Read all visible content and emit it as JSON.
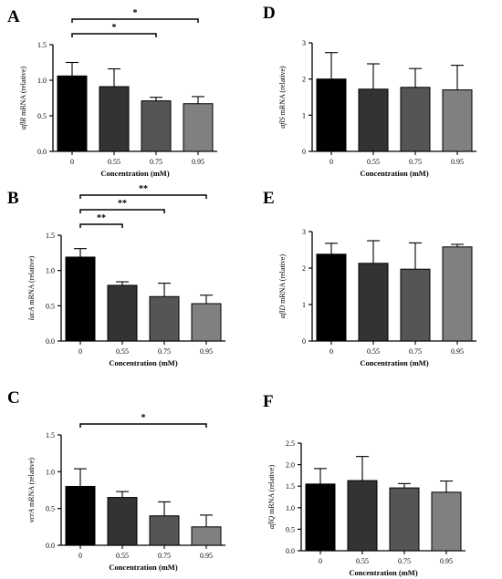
{
  "chart_data": [
    {
      "panel": "A",
      "type": "bar",
      "categories": [
        "0",
        "0.55",
        "0.75",
        "0.95"
      ],
      "values": [
        1.06,
        0.91,
        0.71,
        0.67
      ],
      "errors": [
        0.19,
        0.25,
        0.05,
        0.1
      ],
      "ylim": [
        0,
        1.5
      ],
      "yticks": [
        "0.0",
        "0.5",
        "1.0",
        "1.5"
      ],
      "xlabel": "Concentration (mM)",
      "ylabel": {
        "italic": "aflR",
        "rest": " mRNA (relative)"
      },
      "significance": [
        {
          "from": 0,
          "to": 3,
          "label": "*"
        },
        {
          "from": 0,
          "to": 2,
          "label": "*"
        }
      ],
      "bar_colors": [
        "#000000",
        "#333333",
        "#555555",
        "#808080"
      ]
    },
    {
      "panel": "B",
      "type": "bar",
      "categories": [
        "0",
        "0.55",
        "0.75",
        "0.95"
      ],
      "values": [
        1.19,
        0.79,
        0.63,
        0.53
      ],
      "errors": [
        0.12,
        0.05,
        0.19,
        0.12
      ],
      "ylim": [
        0,
        1.5
      ],
      "yticks": [
        "0.0",
        "0.5",
        "1.0",
        "1.5"
      ],
      "xlabel": "Concentration (mM)",
      "ylabel": {
        "italic": "lacA",
        "rest": " mRNA (relative)"
      },
      "significance": [
        {
          "from": 0,
          "to": 3,
          "label": "**"
        },
        {
          "from": 0,
          "to": 2,
          "label": "**"
        },
        {
          "from": 0,
          "to": 1,
          "label": "**"
        }
      ],
      "bar_colors": [
        "#000000",
        "#333333",
        "#555555",
        "#808080"
      ]
    },
    {
      "panel": "C",
      "type": "bar",
      "categories": [
        "0",
        "0.55",
        "0.75",
        "0.95"
      ],
      "values": [
        0.8,
        0.65,
        0.4,
        0.25
      ],
      "errors": [
        0.24,
        0.08,
        0.19,
        0.16
      ],
      "ylim": [
        0,
        1.5
      ],
      "yticks": [
        "0.0",
        "0.5",
        "1.0",
        "1.5"
      ],
      "xlabel": "Concentration (mM)",
      "ylabel": {
        "italic": "vcrA",
        "rest": " mRNA (relative)"
      },
      "significance": [
        {
          "from": 0,
          "to": 3,
          "label": "*"
        }
      ],
      "bar_colors": [
        "#000000",
        "#333333",
        "#555555",
        "#808080"
      ]
    },
    {
      "panel": "D",
      "type": "bar",
      "categories": [
        "0",
        "0.55",
        "0.75",
        "0.95"
      ],
      "values": [
        2.0,
        1.72,
        1.77,
        1.7
      ],
      "errors": [
        0.73,
        0.7,
        0.52,
        0.68
      ],
      "ylim": [
        0,
        3
      ],
      "yticks": [
        "0",
        "1",
        "2",
        "3"
      ],
      "xlabel": "Concentration (mM)",
      "ylabel": {
        "italic": "aflS",
        "rest": " mRNA (relative)"
      },
      "significance": [],
      "bar_colors": [
        "#000000",
        "#333333",
        "#555555",
        "#808080"
      ]
    },
    {
      "panel": "E",
      "type": "bar",
      "categories": [
        "0",
        "0.55",
        "0.75",
        "0.95"
      ],
      "values": [
        2.38,
        2.13,
        1.97,
        2.58
      ],
      "errors": [
        0.3,
        0.62,
        0.72,
        0.07
      ],
      "ylim": [
        0,
        3
      ],
      "yticks": [
        "0",
        "1",
        "2",
        "3"
      ],
      "xlabel": "Concentration (mM)",
      "ylabel": {
        "italic": "aflD",
        "rest": " mRNA (relative)"
      },
      "significance": [],
      "bar_colors": [
        "#000000",
        "#333333",
        "#555555",
        "#808080"
      ]
    },
    {
      "panel": "F",
      "type": "bar",
      "categories": [
        "0",
        "0.55",
        "0.75",
        "0.95"
      ],
      "values": [
        1.55,
        1.63,
        1.46,
        1.36
      ],
      "errors": [
        0.36,
        0.56,
        0.1,
        0.26
      ],
      "ylim": [
        0,
        2.5
      ],
      "yticks": [
        "0.0",
        "0.5",
        "1.0",
        "1.5",
        "2.0",
        "2.5"
      ],
      "xlabel": "Concentration (mM)",
      "ylabel": {
        "italic": "aflQ",
        "rest": " mRNA (relative)"
      },
      "significance": [],
      "bar_colors": [
        "#000000",
        "#333333",
        "#555555",
        "#808080"
      ]
    }
  ]
}
